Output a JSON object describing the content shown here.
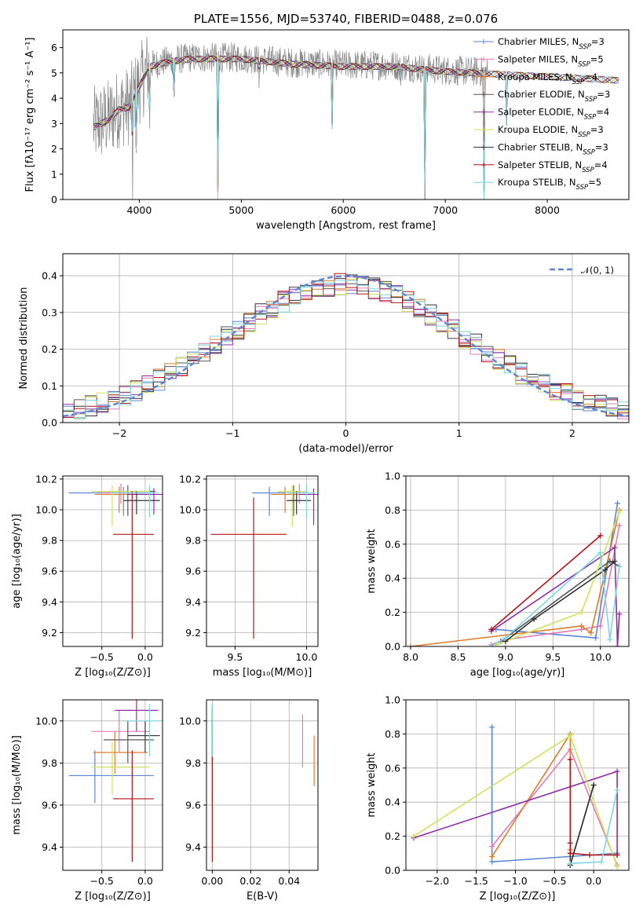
{
  "colors": {
    "Chabrier MILES": "#5b86d6",
    "Salpeter MILES": "#e07ab8",
    "Kroupa MILES": "#e07b2c",
    "Chabrier ELODIE": "#555555",
    "Salpeter ELODIE": "#8e2fa8",
    "Kroupa ELODIE": "#cfe35a",
    "Chabrier STELIB": "#333333",
    "Salpeter STELIB": "#b21416",
    "Kroupa STELIB": "#7fd6e0",
    "normal": "#5b86d6",
    "grid": "#b0b0b0"
  },
  "chart_data": [
    {
      "id": "spectrum",
      "type": "line",
      "title": "PLATE=1556, MJD=53740, FIBERID=0488, z=0.076",
      "xlabel": "wavelength [Angstrom, rest frame]",
      "ylabel": "Flux [fλ10⁻¹⁷ erg cm⁻² s⁻¹ A⁻¹]",
      "xlim": [
        3250,
        8800
      ],
      "ylim": [
        0,
        6.7
      ],
      "xticks": [
        4000,
        5000,
        6000,
        7000,
        8000
      ],
      "yticks": [
        0,
        1,
        2,
        3,
        4,
        5,
        6
      ],
      "grid": false,
      "legend_position": "right",
      "legend": [
        {
          "label": "Chabrier MILES, N",
          "sub": "SSP",
          "suffix": "=3",
          "color": "Chabrier MILES"
        },
        {
          "label": "Salpeter MILES, N",
          "sub": "SSP",
          "suffix": "=5",
          "color": "Salpeter MILES"
        },
        {
          "label": "Kroupa MILES, N",
          "sub": "SSP",
          "suffix": "=4",
          "color": "Kroupa MILES"
        },
        {
          "label": "Chabrier ELODIE, N",
          "sub": "SSP",
          "suffix": "=3",
          "color": "Chabrier ELODIE"
        },
        {
          "label": "Salpeter ELODIE, N",
          "sub": "SSP",
          "suffix": "=4",
          "color": "Salpeter ELODIE"
        },
        {
          "label": "Kroupa ELODIE, N",
          "sub": "SSP",
          "suffix": "=3",
          "color": "Kroupa ELODIE"
        },
        {
          "label": "Chabrier STELIB, N",
          "sub": "SSP",
          "suffix": "=3",
          "color": "Chabrier STELIB"
        },
        {
          "label": "Salpeter STELIB, N",
          "sub": "SSP",
          "suffix": "=4",
          "color": "Salpeter STELIB"
        },
        {
          "label": "Kroupa STELIB, N",
          "sub": "SSP",
          "suffix": "=5",
          "color": "Kroupa STELIB"
        }
      ],
      "continuum": {
        "x": [
          3550,
          3700,
          3800,
          3900,
          4000,
          4100,
          4300,
          4500,
          5000,
          5500,
          6000,
          6500,
          7000,
          7300,
          7500,
          8000,
          8500,
          8700
        ],
        "y": [
          2.9,
          3.2,
          3.6,
          3.7,
          4.5,
          5.3,
          5.5,
          5.6,
          5.6,
          5.4,
          5.3,
          5.3,
          5.1,
          5.05,
          5.0,
          4.9,
          4.8,
          4.75
        ]
      },
      "absorption": [
        {
          "x": 3934,
          "y": 0.0
        },
        {
          "x": 3969,
          "y": 1.5
        },
        {
          "x": 4102,
          "y": 2.8
        },
        {
          "x": 4341,
          "y": 3.8
        },
        {
          "x": 4770,
          "y": 0.0
        },
        {
          "x": 5175,
          "y": 4.2
        },
        {
          "x": 5890,
          "y": 2.8
        },
        {
          "x": 6563,
          "y": 4.3
        },
        {
          "x": 6800,
          "y": 0.0
        },
        {
          "x": 7380,
          "y": 0.0
        },
        {
          "x": 7600,
          "y": 2.9
        }
      ]
    },
    {
      "id": "residuals",
      "type": "bar",
      "xlabel": "(data-model)/error",
      "ylabel": "Normed distribution",
      "xlim": [
        -2.5,
        2.5
      ],
      "ylim": [
        0,
        0.46
      ],
      "xticks": [
        -2,
        -1,
        0,
        1,
        2
      ],
      "yticks": [
        0.0,
        0.1,
        0.2,
        0.3,
        0.4
      ],
      "grid": true,
      "legend_position": "top-right",
      "legend_label": "𝒩(0, 1)",
      "bin_width": 0.1,
      "normal": {
        "mean": 0,
        "sigma": 1
      }
    },
    {
      "id": "age-vs-z",
      "type": "scatter",
      "xlabel": "Z [log₁₀(Z/Z⊙)]",
      "ylabel": "age  [log₁₀(age/yr)]",
      "xlim": [
        -0.95,
        0.2
      ],
      "ylim": [
        9.11,
        10.22
      ],
      "xticks": [
        -0.5,
        0.0
      ],
      "yticks": [
        9.2,
        9.4,
        9.6,
        9.8,
        10.0,
        10.2
      ],
      "grid": true,
      "points": [
        {
          "c": "Chabrier MILES",
          "x": -0.25,
          "xe": [
            -0.88,
            0.1
          ],
          "y": 10.11,
          "ye": [
            9.96,
            10.15
          ]
        },
        {
          "c": "Salpeter MILES",
          "x": -0.28,
          "xe": [
            -0.5,
            0.0
          ],
          "y": 10.11,
          "ye": [
            10.04,
            10.17
          ]
        },
        {
          "c": "Kroupa MILES",
          "x": -0.3,
          "xe": [
            -0.58,
            0.05
          ],
          "y": 10.1,
          "ye": [
            9.98,
            10.15
          ]
        },
        {
          "c": "Chabrier ELODIE",
          "x": -0.2,
          "xe": [
            -0.55,
            0.12
          ],
          "y": 10.12,
          "ye": [
            9.96,
            10.16
          ]
        },
        {
          "c": "Salpeter ELODIE",
          "x": 0.1,
          "xe": [
            -0.2,
            0.2
          ],
          "y": 10.1,
          "ye": [
            9.97,
            10.14
          ]
        },
        {
          "c": "Kroupa ELODIE",
          "x": -0.38,
          "xe": [
            -0.62,
            0.05
          ],
          "y": 10.12,
          "ye": [
            9.89,
            10.16
          ]
        },
        {
          "c": "Chabrier STELIB",
          "x": -0.1,
          "xe": [
            -0.25,
            0.17
          ],
          "y": 10.06,
          "ye": [
            9.97,
            10.12
          ]
        },
        {
          "c": "Salpeter STELIB",
          "x": -0.15,
          "xe": [
            -0.37,
            0.1
          ],
          "y": 9.84,
          "ye": [
            9.16,
            10.12
          ]
        },
        {
          "c": "Kroupa STELIB",
          "x": 0.05,
          "xe": [
            -0.4,
            0.15
          ],
          "y": 10.11,
          "ye": [
            9.95,
            10.16
          ]
        }
      ]
    },
    {
      "id": "age-vs-mass",
      "type": "scatter",
      "xlabel": "mass [log₁₀(M/M⊙)]",
      "ylabel": "",
      "xlim": [
        9.3,
        10.08
      ],
      "ylim": [
        9.11,
        10.22
      ],
      "xticks": [
        9.5,
        10.0
      ],
      "yticks": [
        9.2,
        9.4,
        9.6,
        9.8,
        10.0,
        10.2
      ],
      "grid": true,
      "points": [
        {
          "c": "Chabrier MILES",
          "x": 9.74,
          "xe": [
            9.62,
            9.85
          ],
          "y": 10.11,
          "ye": [
            9.96,
            10.15
          ]
        },
        {
          "c": "Salpeter MILES",
          "x": 9.95,
          "xe": [
            9.87,
            10.02
          ],
          "y": 10.11,
          "ye": [
            10.04,
            10.17
          ]
        },
        {
          "c": "Kroupa MILES",
          "x": 9.85,
          "xe": [
            9.75,
            9.95
          ],
          "y": 10.1,
          "ye": [
            9.98,
            10.15
          ]
        },
        {
          "c": "Chabrier ELODIE",
          "x": 9.91,
          "xe": [
            9.8,
            10.0
          ],
          "y": 10.12,
          "ye": [
            9.96,
            10.16
          ]
        },
        {
          "c": "Salpeter ELODIE",
          "x": 10.05,
          "xe": [
            9.95,
            10.08
          ],
          "y": 10.1,
          "ye": [
            9.9,
            10.14
          ]
        },
        {
          "c": "Kroupa ELODIE",
          "x": 9.9,
          "xe": [
            9.8,
            10.0
          ],
          "y": 10.12,
          "ye": [
            9.89,
            10.16
          ]
        },
        {
          "c": "Chabrier STELIB",
          "x": 9.93,
          "xe": [
            9.86,
            10.03
          ],
          "y": 10.06,
          "ye": [
            9.97,
            10.12
          ]
        },
        {
          "c": "Salpeter STELIB",
          "x": 9.63,
          "xe": [
            9.33,
            9.86
          ],
          "y": 9.84,
          "ye": [
            9.16,
            10.08
          ]
        },
        {
          "c": "Kroupa STELIB",
          "x": 10.0,
          "xe": [
            9.85,
            10.06
          ],
          "y": 10.11,
          "ye": [
            9.95,
            10.16
          ]
        }
      ]
    },
    {
      "id": "massweight-vs-age",
      "type": "line",
      "xlabel": "age  [log₁₀(age/yr)]",
      "ylabel": "mass weight",
      "xlim": [
        7.95,
        10.3
      ],
      "ylim": [
        0.0,
        1.0
      ],
      "xticks": [
        8.0,
        8.5,
        9.0,
        9.5,
        10.0
      ],
      "yticks": [
        0.0,
        0.2,
        0.4,
        0.6,
        0.8,
        1.0
      ],
      "grid": true,
      "series": [
        {
          "c": "Chabrier MILES",
          "x": [
            8.9,
            9.95,
            10.18
          ],
          "y": [
            0.1,
            0.05,
            0.84
          ]
        },
        {
          "c": "Salpeter MILES",
          "x": [
            8.85,
            9.0,
            9.8,
            10.0,
            10.2
          ],
          "y": [
            0.01,
            0.04,
            0.1,
            0.12,
            0.71
          ]
        },
        {
          "c": "Kroupa MILES",
          "x": [
            8.0,
            9.8,
            9.9,
            10.2
          ],
          "y": [
            0.0,
            0.12,
            0.08,
            0.8
          ]
        },
        {
          "c": "Chabrier ELODIE",
          "x": [
            8.95,
            10.1,
            10.2
          ],
          "y": [
            0.03,
            0.5,
            0.47
          ]
        },
        {
          "c": "Salpeter ELODIE",
          "x": [
            8.85,
            10.15,
            10.18,
            10.2
          ],
          "y": [
            0.09,
            0.58,
            0.0,
            0.19
          ]
        },
        {
          "c": "Kroupa ELODIE",
          "x": [
            8.9,
            9.8,
            10.2
          ],
          "y": [
            0.01,
            0.2,
            0.79
          ]
        },
        {
          "c": "Chabrier STELIB",
          "x": [
            9.0,
            9.3,
            10.05,
            10.15
          ],
          "y": [
            0.03,
            0.16,
            0.45,
            0.5
          ]
        },
        {
          "c": "Salpeter STELIB",
          "x": [
            8.85,
            10.0
          ],
          "y": [
            0.1,
            0.65
          ]
        },
        {
          "c": "Kroupa STELIB",
          "x": [
            8.85,
            9.0,
            10.0,
            10.1,
            10.2
          ],
          "y": [
            0.0,
            0.05,
            0.55,
            0.04,
            0.47
          ]
        }
      ]
    },
    {
      "id": "mass-vs-z",
      "type": "scatter",
      "xlabel": "Z [log₁₀(Z/Z⊙)]",
      "ylabel": "mass [log₁₀(M/M⊙)]",
      "xlim": [
        -0.95,
        0.2
      ],
      "ylim": [
        9.29,
        10.1
      ],
      "xticks": [
        -0.5,
        0.0
      ],
      "yticks": [
        9.4,
        9.6,
        9.8,
        10.0
      ],
      "grid": true,
      "points": [
        {
          "c": "Chabrier MILES",
          "x": -0.58,
          "xe": [
            -0.88,
            0.1
          ],
          "y": 9.74,
          "ye": [
            9.61,
            9.86
          ]
        },
        {
          "c": "Salpeter MILES",
          "x": -0.3,
          "xe": [
            -0.62,
            0.05
          ],
          "y": 9.95,
          "ye": [
            9.85,
            10.05
          ]
        },
        {
          "c": "Kroupa MILES",
          "x": -0.35,
          "xe": [
            -0.6,
            0.03
          ],
          "y": 9.85,
          "ye": [
            9.75,
            9.95
          ]
        },
        {
          "c": "Chabrier ELODIE",
          "x": -0.2,
          "xe": [
            -0.48,
            0.1
          ],
          "y": 9.91,
          "ye": [
            9.8,
            10.0
          ]
        },
        {
          "c": "Salpeter ELODIE",
          "x": -0.1,
          "xe": [
            -0.35,
            0.15
          ],
          "y": 10.05,
          "ye": [
            9.95,
            10.1
          ]
        },
        {
          "c": "Kroupa ELODIE",
          "x": -0.38,
          "xe": [
            -0.62,
            0.05
          ],
          "y": 9.78,
          "ye": [
            9.65,
            9.9
          ]
        },
        {
          "c": "Chabrier STELIB",
          "x": 0.0,
          "xe": [
            -0.2,
            0.17
          ],
          "y": 9.93,
          "ye": [
            9.85,
            10.0
          ]
        },
        {
          "c": "Salpeter STELIB",
          "x": -0.15,
          "xe": [
            -0.37,
            0.1
          ],
          "y": 9.63,
          "ye": [
            9.33,
            9.86
          ]
        },
        {
          "c": "Kroupa STELIB",
          "x": 0.05,
          "xe": [
            -0.25,
            0.2
          ],
          "y": 10.0,
          "ye": [
            9.83,
            10.08
          ]
        }
      ]
    },
    {
      "id": "mass-vs-ebv",
      "type": "scatter",
      "xlabel": "E(B-V)",
      "ylabel": "",
      "xlim": [
        -0.003,
        0.055
      ],
      "ylim": [
        9.29,
        10.1
      ],
      "xticks": [
        0.0,
        0.02,
        0.04
      ],
      "yticks": [
        9.4,
        9.6,
        9.8,
        10.0
      ],
      "grid": true,
      "points": [
        {
          "c": "Chabrier MILES",
          "x": 0.0,
          "y": 9.74,
          "ye": [
            9.61,
            9.86
          ]
        },
        {
          "c": "Salpeter MILES",
          "x": 0.047,
          "y": 9.95,
          "ye": [
            9.78,
            10.03
          ]
        },
        {
          "c": "Kroupa MILES",
          "x": 0.053,
          "y": 9.85,
          "ye": [
            9.69,
            9.93
          ]
        },
        {
          "c": "Chabrier ELODIE",
          "x": 0.0,
          "y": 9.91,
          "ye": [
            9.8,
            10.05
          ]
        },
        {
          "c": "Salpeter ELODIE",
          "x": 0.0,
          "y": 10.05,
          "ye": [
            9.95,
            10.07
          ]
        },
        {
          "c": "Kroupa ELODIE",
          "x": 0.0,
          "y": 9.78,
          "ye": [
            9.65,
            9.9
          ]
        },
        {
          "c": "Chabrier STELIB",
          "x": 0.0,
          "y": 9.93,
          "ye": [
            9.85,
            10.0
          ]
        },
        {
          "c": "Salpeter STELIB",
          "x": 0.0,
          "y": 9.63,
          "ye": [
            9.33,
            9.86
          ]
        },
        {
          "c": "Kroupa STELIB",
          "x": 0.0,
          "y": 10.0,
          "ye": [
            9.83,
            10.08
          ]
        }
      ]
    },
    {
      "id": "massweight-vs-z",
      "type": "line",
      "xlabel": "Z [log₁₀(Z/Z⊙)]",
      "ylabel": "mass weight",
      "xlim": [
        -2.4,
        0.45
      ],
      "ylim": [
        0.0,
        1.0
      ],
      "xticks": [
        -2.0,
        -1.5,
        -1.0,
        -0.5,
        0.0
      ],
      "yticks": [
        0.0,
        0.2,
        0.4,
        0.6,
        0.8,
        1.0
      ],
      "grid": true,
      "series": [
        {
          "c": "Chabrier MILES",
          "x": [
            -1.3,
            -1.3,
            0.3
          ],
          "y": [
            0.84,
            0.05,
            0.1
          ]
        },
        {
          "c": "Salpeter MILES",
          "x": [
            -1.3,
            -0.3,
            0.3
          ],
          "y": [
            0.14,
            0.71,
            0.03
          ]
        },
        {
          "c": "Kroupa MILES",
          "x": [
            -1.3,
            -0.3,
            -0.3
          ],
          "y": [
            0.08,
            0.8,
            0.12
          ]
        },
        {
          "c": "Chabrier ELODIE",
          "x": [
            -0.3,
            0.0
          ],
          "y": [
            0.03,
            0.5
          ]
        },
        {
          "c": "Salpeter ELODIE",
          "x": [
            -2.3,
            0.3,
            0.3
          ],
          "y": [
            0.19,
            0.58,
            0.09
          ]
        },
        {
          "c": "Kroupa ELODIE",
          "x": [
            -2.3,
            -0.3,
            0.3
          ],
          "y": [
            0.2,
            0.79,
            0.02
          ]
        },
        {
          "c": "Chabrier STELIB",
          "x": [
            -0.3,
            -0.3,
            0.0
          ],
          "y": [
            0.16,
            0.03,
            0.5
          ]
        },
        {
          "c": "Salpeter STELIB",
          "x": [
            -0.3,
            -0.3,
            -0.05,
            0.3
          ],
          "y": [
            0.65,
            0.1,
            0.09,
            0.09
          ]
        },
        {
          "c": "Kroupa STELIB",
          "x": [
            -0.3,
            0.1,
            0.3
          ],
          "y": [
            0.04,
            0.05,
            0.47
          ]
        }
      ]
    }
  ]
}
